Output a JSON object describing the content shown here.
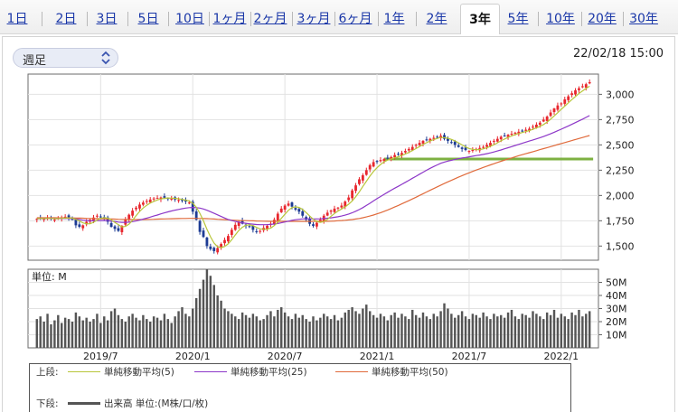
{
  "tabs": [
    {
      "label": "1日"
    },
    {
      "label": "2日"
    },
    {
      "label": "3日"
    },
    {
      "label": "5日"
    },
    {
      "label": "10日"
    },
    {
      "label": "1ヶ月"
    },
    {
      "label": "2ヶ月"
    },
    {
      "label": "3ヶ月"
    },
    {
      "label": "6ヶ月"
    },
    {
      "label": "1年"
    },
    {
      "label": "2年"
    },
    {
      "label": "3年"
    },
    {
      "label": "5年"
    },
    {
      "label": "10年"
    },
    {
      "label": "20年"
    },
    {
      "label": "30年"
    }
  ],
  "active_tab": "3年",
  "period_select": {
    "value": "週足"
  },
  "timestamp": "22/02/18 15:00",
  "chart_data": [
    {
      "type": "candlestick",
      "y_ticks": [
        "3,000",
        "2,750",
        "2,500",
        "2,250",
        "2,000",
        "1,750",
        "1,500"
      ],
      "y_tick_values": [
        3000,
        2750,
        2500,
        2250,
        2000,
        1750,
        1500
      ],
      "ylim": [
        1360,
        3200
      ],
      "x_ticks": [
        "2019/7",
        "2020/1",
        "2020/7",
        "2021/1",
        "2021/7",
        "2022/1"
      ],
      "x_tick_index": [
        18,
        44,
        70,
        96,
        122,
        148
      ],
      "n_weeks": 157,
      "close": [
        1770,
        1775,
        1768,
        1780,
        1772,
        1760,
        1775,
        1782,
        1790,
        1778,
        1765,
        1705,
        1690,
        1705,
        1740,
        1760,
        1782,
        1800,
        1790,
        1770,
        1740,
        1690,
        1670,
        1650,
        1700,
        1760,
        1810,
        1850,
        1880,
        1910,
        1930,
        1945,
        1960,
        1970,
        1975,
        1980,
        1978,
        1972,
        1968,
        1960,
        1955,
        1948,
        1940,
        1930,
        1840,
        1760,
        1640,
        1590,
        1500,
        1470,
        1450,
        1480,
        1520,
        1560,
        1600,
        1660,
        1710,
        1740,
        1720,
        1700,
        1690,
        1660,
        1640,
        1650,
        1680,
        1700,
        1720,
        1760,
        1820,
        1870,
        1900,
        1920,
        1890,
        1860,
        1840,
        1800,
        1760,
        1720,
        1700,
        1730,
        1760,
        1800,
        1830,
        1850,
        1870,
        1880,
        1900,
        1940,
        1980,
        2050,
        2100,
        2160,
        2200,
        2250,
        2300,
        2330,
        2340,
        2350,
        2360,
        2370,
        2380,
        2400,
        2410,
        2420,
        2440,
        2460,
        2480,
        2500,
        2520,
        2540,
        2550,
        2560,
        2570,
        2580,
        2590,
        2560,
        2540,
        2520,
        2500,
        2480,
        2460,
        2450,
        2440,
        2450,
        2460,
        2470,
        2480,
        2500,
        2520,
        2540,
        2560,
        2580,
        2590,
        2600,
        2610,
        2620,
        2630,
        2640,
        2650,
        2660,
        2680,
        2700,
        2720,
        2750,
        2780,
        2820,
        2860,
        2890,
        2910,
        2950,
        2980,
        3010,
        3040,
        3060,
        3080,
        3100,
        3120
      ],
      "ma_5": [
        1772,
        1773,
        1772,
        1774,
        1773,
        1771,
        1771,
        1774,
        1776,
        1777,
        1776,
        1764,
        1749,
        1729,
        1721,
        1720,
        1735,
        1757,
        1774,
        1780,
        1776,
        1758,
        1734,
        1712,
        1690,
        1694,
        1716,
        1754,
        1800,
        1842,
        1876,
        1903,
        1925,
        1941,
        1956,
        1966,
        1972,
        1975,
        1974,
        1972,
        1967,
        1961,
        1954,
        1946,
        1923,
        1883,
        1824,
        1750,
        1666,
        1592,
        1530,
        1492,
        1484,
        1496,
        1522,
        1564,
        1610,
        1655,
        1686,
        1706,
        1710,
        1702,
        1684,
        1670,
        1666,
        1666,
        1678,
        1702,
        1736,
        1774,
        1814,
        1854,
        1880,
        1888,
        1882,
        1862,
        1831,
        1797,
        1765,
        1743,
        1734,
        1742,
        1764,
        1794,
        1822,
        1846,
        1866,
        1888,
        1914,
        1946,
        1988,
        2036,
        2090,
        2141,
        2192,
        2236,
        2274,
        2307,
        2332,
        2350,
        2360,
        2372,
        2383,
        2395,
        2410,
        2426,
        2444,
        2464,
        2484,
        2504,
        2522,
        2538,
        2552,
        2564,
        2574,
        2572,
        2566,
        2554,
        2540,
        2520,
        2500,
        2480,
        2464,
        2456,
        2452,
        2454,
        2460,
        2472,
        2486,
        2502,
        2520,
        2540,
        2558,
        2574,
        2588,
        2602,
        2612,
        2622,
        2632,
        2642,
        2654,
        2668,
        2684,
        2702,
        2726,
        2754,
        2786,
        2818,
        2852,
        2884,
        2916,
        2948,
        2978,
        3008,
        3034,
        3058,
        3080
      ],
      "ma_25": [
        1770,
        1771,
        1771,
        1772,
        1772,
        1771,
        1771,
        1772,
        1773,
        1773,
        1772,
        1768,
        1762,
        1756,
        1752,
        1749,
        1749,
        1751,
        1752,
        1752,
        1751,
        1748,
        1743,
        1737,
        1734,
        1734,
        1736,
        1741,
        1748,
        1757,
        1766,
        1776,
        1786,
        1797,
        1807,
        1818,
        1828,
        1838,
        1847,
        1855,
        1862,
        1869,
        1875,
        1880,
        1882,
        1880,
        1875,
        1866,
        1854,
        1840,
        1824,
        1808,
        1792,
        1777,
        1763,
        1752,
        1743,
        1736,
        1730,
        1725,
        1720,
        1716,
        1713,
        1711,
        1711,
        1712,
        1714,
        1718,
        1723,
        1730,
        1738,
        1746,
        1754,
        1760,
        1765,
        1768,
        1769,
        1769,
        1768,
        1768,
        1769,
        1772,
        1775,
        1779,
        1784,
        1790,
        1797,
        1806,
        1816,
        1829,
        1844,
        1861,
        1880,
        1901,
        1923,
        1946,
        1968,
        1990,
        2011,
        2032,
        2052,
        2072,
        2091,
        2110,
        2130,
        2150,
        2170,
        2190,
        2210,
        2230,
        2250,
        2268,
        2286,
        2302,
        2318,
        2330,
        2340,
        2348,
        2356,
        2363,
        2370,
        2376,
        2382,
        2388,
        2394,
        2400,
        2406,
        2413,
        2421,
        2430,
        2440,
        2450,
        2461,
        2472,
        2483,
        2494,
        2505,
        2516,
        2527,
        2538,
        2549,
        2560,
        2571,
        2583,
        2596,
        2610,
        2625,
        2640,
        2655,
        2671,
        2687,
        2703,
        2720,
        2737,
        2754,
        2772,
        2790
      ],
      "ma_50": [
        1780,
        1780,
        1780,
        1780,
        1780,
        1780,
        1779,
        1779,
        1779,
        1779,
        1778,
        1777,
        1776,
        1775,
        1774,
        1773,
        1772,
        1771,
        1770,
        1769,
        1768,
        1767,
        1766,
        1765,
        1764,
        1763,
        1762,
        1762,
        1762,
        1762,
        1762,
        1763,
        1764,
        1765,
        1766,
        1767,
        1768,
        1769,
        1770,
        1771,
        1772,
        1773,
        1773,
        1774,
        1774,
        1774,
        1773,
        1772,
        1771,
        1769,
        1767,
        1765,
        1763,
        1761,
        1759,
        1757,
        1755,
        1753,
        1752,
        1751,
        1750,
        1749,
        1748,
        1747,
        1746,
        1745,
        1744,
        1744,
        1744,
        1744,
        1744,
        1744,
        1744,
        1744,
        1744,
        1744,
        1744,
        1744,
        1744,
        1744,
        1744,
        1744,
        1745,
        1746,
        1748,
        1750,
        1752,
        1755,
        1758,
        1762,
        1767,
        1773,
        1780,
        1788,
        1797,
        1807,
        1818,
        1830,
        1843,
        1857,
        1871,
        1886,
        1901,
        1917,
        1933,
        1949,
        1966,
        1983,
        2000,
        2017,
        2034,
        2051,
        2068,
        2085,
        2102,
        2118,
        2134,
        2150,
        2166,
        2181,
        2196,
        2210,
        2224,
        2238,
        2251,
        2264,
        2277,
        2290,
        2302,
        2314,
        2326,
        2338,
        2349,
        2360,
        2371,
        2382,
        2393,
        2403,
        2413,
        2423,
        2433,
        2443,
        2453,
        2463,
        2473,
        2483,
        2493,
        2503,
        2513,
        2523,
        2533,
        2543,
        2553,
        2563,
        2573,
        2583,
        2593
      ],
      "horizontal_line": 2360
    },
    {
      "type": "bar",
      "y_ticks": [
        "50M",
        "40M",
        "30M",
        "20M",
        "10M"
      ],
      "y_tick_values": [
        50,
        40,
        30,
        20,
        10
      ],
      "ylim": [
        0,
        60
      ],
      "ylabel": "単位: M",
      "volume": [
        22,
        24,
        20,
        26,
        18,
        21,
        25,
        19,
        23,
        22,
        20,
        27,
        24,
        21,
        23,
        20,
        22,
        26,
        19,
        24,
        21,
        28,
        30,
        25,
        22,
        20,
        24,
        26,
        23,
        21,
        25,
        22,
        20,
        24,
        23,
        21,
        26,
        22,
        19,
        24,
        28,
        31,
        26,
        24,
        30,
        38,
        45,
        52,
        60,
        55,
        48,
        40,
        36,
        30,
        28,
        26,
        24,
        22,
        27,
        25,
        23,
        26,
        24,
        21,
        22,
        25,
        28,
        24,
        29,
        31,
        27,
        24,
        22,
        26,
        23,
        25,
        22,
        20,
        24,
        21,
        23,
        26,
        24,
        22,
        25,
        21,
        23,
        27,
        29,
        31,
        28,
        26,
        30,
        33,
        28,
        25,
        23,
        26,
        24,
        21,
        25,
        27,
        23,
        26,
        24,
        22,
        29,
        25,
        23,
        27,
        24,
        22,
        26,
        24,
        28,
        34,
        30,
        26,
        23,
        25,
        28,
        24,
        22,
        26,
        25,
        23,
        27,
        24,
        22,
        26,
        24,
        25,
        23,
        27,
        29,
        24,
        22,
        26,
        25,
        23,
        28,
        26,
        24,
        22,
        27,
        25,
        29,
        23,
        26,
        24,
        22,
        27,
        25,
        29,
        24,
        26,
        28
      ]
    }
  ],
  "legend": {
    "upper_label": "上段:",
    "ma5_label": "単純移動平均(5)",
    "ma25_label": "単純移動平均(25)",
    "ma50_label": "単純移動平均(50)",
    "lower_label": "下段:",
    "volume_label": "出来高 単位:(M株/口/枚)"
  },
  "colors": {
    "up": "#e8272e",
    "down": "#1d3c94",
    "ma5": "#b8c63a",
    "ma25": "#8d37c8",
    "ma50": "#e06a3b",
    "hline": "#7db042",
    "volume": "#555555",
    "link": "#1a37a8"
  }
}
